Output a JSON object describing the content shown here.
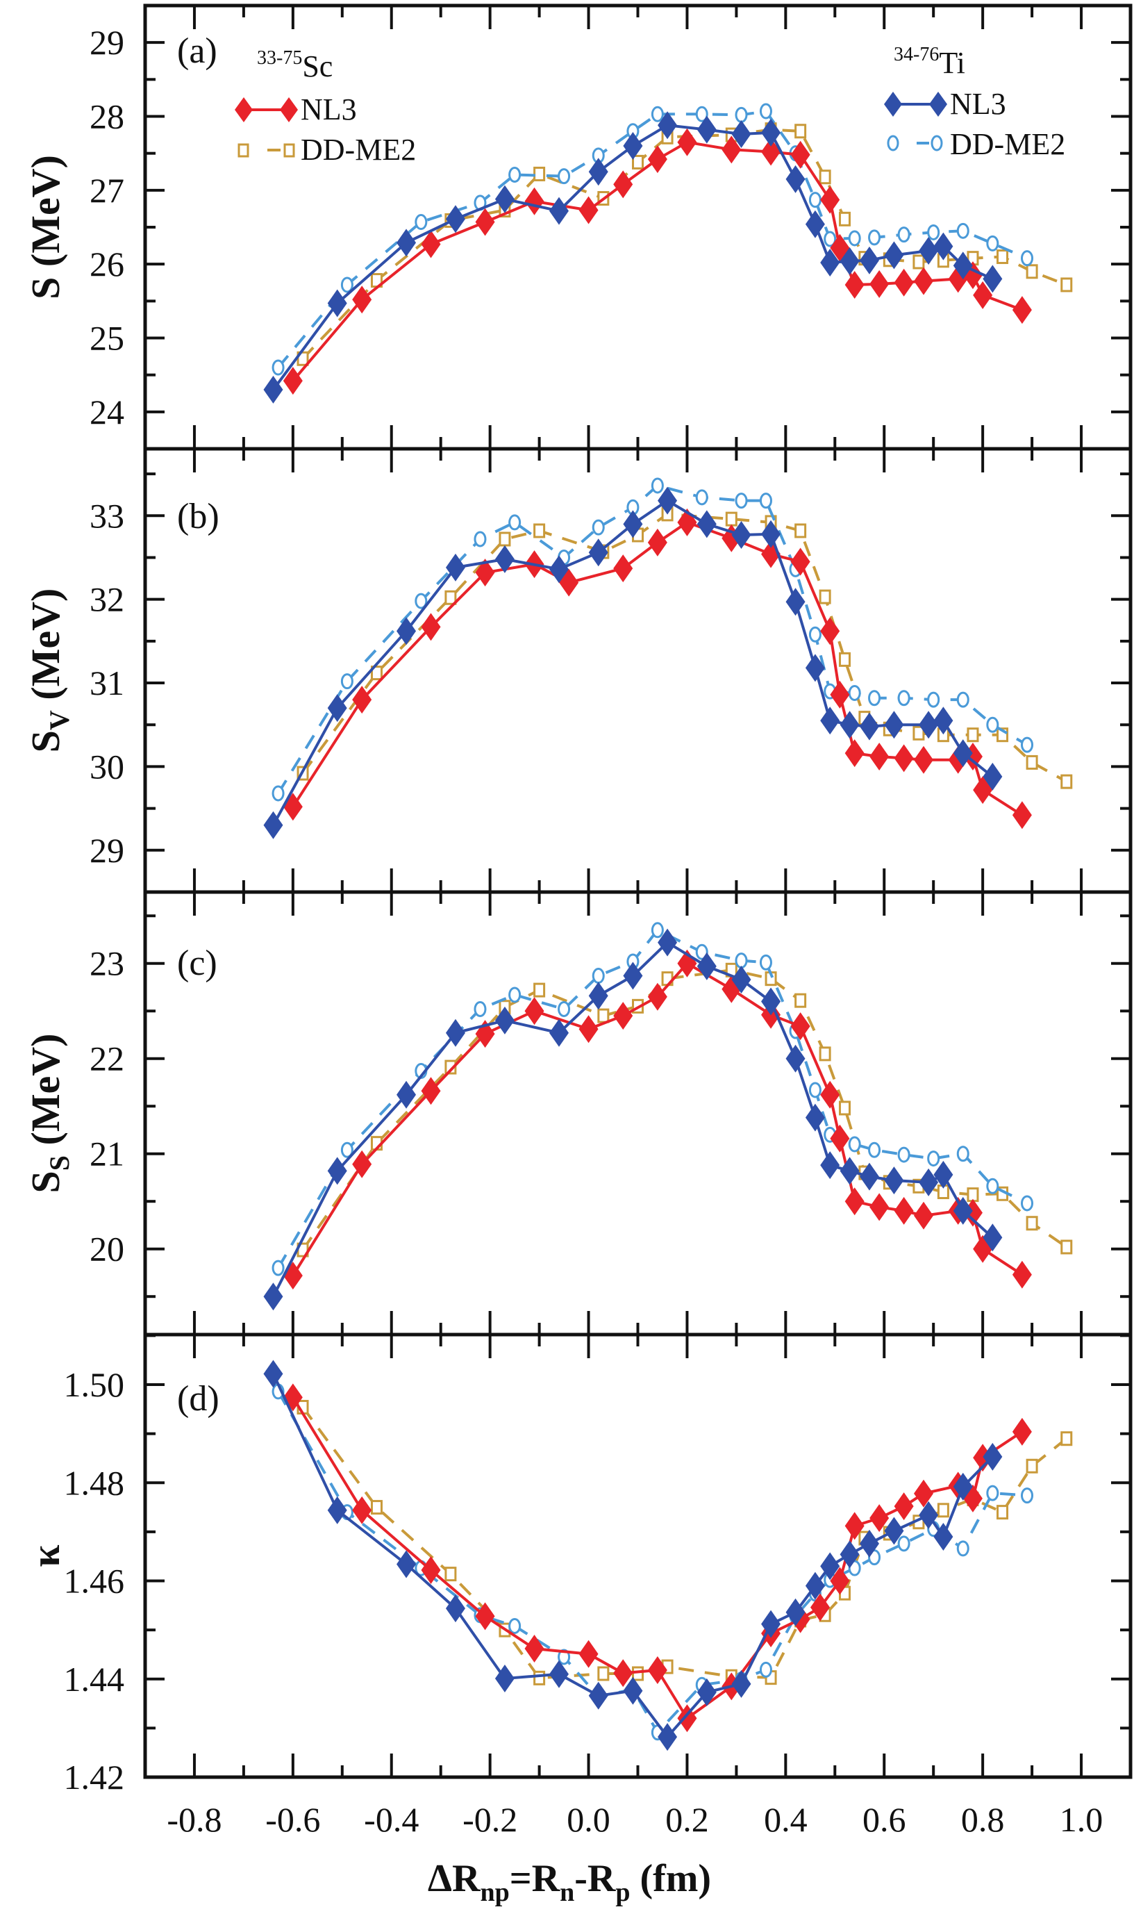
{
  "colors": {
    "sc_nl3": "#e8232a",
    "sc_ddme2": "#c99a3a",
    "ti_nl3": "#2f4fa8",
    "ti_ddme2": "#4a9ad8",
    "axis": "#111111"
  },
  "legend": {
    "sc_title_sup": "33-75",
    "sc_title": "Sc",
    "ti_title_sup": "34-76",
    "ti_title": "Ti",
    "nl3": "NL3",
    "ddme2": "DD-ME2"
  },
  "xaxis": {
    "label_delta": "ΔR",
    "label_sub1": "np",
    "label_eq": "=R",
    "label_sub2": "n",
    "label_minus": "-R",
    "label_sub3": "p",
    "label_unit": " (fm)",
    "ticks": [
      "-0.8",
      "-0.6",
      "-0.4",
      "-0.2",
      "0.0",
      "0.2",
      "0.4",
      "0.6",
      "0.8",
      "1.0"
    ]
  },
  "chart_data": [
    {
      "type": "line",
      "panel": "(a)",
      "ylabel": "S (MeV)",
      "ylabel_main": "S (MeV)",
      "xlabel": "ΔRnp=Rn-Rp (fm)",
      "xlim": [
        -0.9,
        1.1
      ],
      "ylim": [
        23.5,
        29.5
      ],
      "yticks": [
        "24",
        "25",
        "26",
        "27",
        "28",
        "29"
      ],
      "series": [
        {
          "name": "33-75Sc NL3",
          "key": "sc_nl3",
          "x": [
            -0.6,
            -0.46,
            -0.32,
            -0.21,
            -0.11,
            0.0,
            0.07,
            0.14,
            0.2,
            0.29,
            0.37,
            0.43,
            0.49,
            0.51,
            0.54,
            0.59,
            0.64,
            0.68,
            0.75,
            0.78,
            0.8,
            0.88
          ],
          "y": [
            24.42,
            25.52,
            26.27,
            26.57,
            26.85,
            26.73,
            27.08,
            27.42,
            27.65,
            27.55,
            27.52,
            27.48,
            26.87,
            26.22,
            25.72,
            25.73,
            25.75,
            25.77,
            25.8,
            25.85,
            25.58,
            25.38
          ]
        },
        {
          "name": "33-75Sc DD-ME2",
          "key": "sc_ddme2",
          "x": [
            -0.58,
            -0.43,
            -0.28,
            -0.17,
            -0.1,
            0.03,
            0.1,
            0.16,
            0.29,
            0.37,
            0.43,
            0.48,
            0.52,
            0.56,
            0.61,
            0.67,
            0.72,
            0.78,
            0.84,
            0.9,
            0.97
          ],
          "y": [
            24.72,
            25.78,
            26.59,
            26.73,
            27.22,
            26.89,
            27.38,
            27.72,
            27.75,
            27.82,
            27.8,
            27.18,
            26.61,
            26.08,
            26.06,
            26.03,
            26.05,
            26.08,
            26.1,
            25.9,
            25.72
          ]
        },
        {
          "name": "34-76Ti NL3",
          "key": "ti_nl3",
          "x": [
            -0.64,
            -0.51,
            -0.37,
            -0.27,
            -0.17,
            -0.06,
            0.02,
            0.09,
            0.16,
            0.24,
            0.31,
            0.37,
            0.42,
            0.46,
            0.49,
            0.53,
            0.57,
            0.62,
            0.69,
            0.72,
            0.76,
            0.82
          ],
          "y": [
            24.3,
            25.47,
            26.29,
            26.61,
            26.88,
            26.72,
            27.25,
            27.6,
            27.88,
            27.82,
            27.76,
            27.78,
            27.15,
            26.54,
            26.02,
            26.04,
            26.05,
            26.12,
            26.18,
            26.24,
            25.98,
            25.8
          ]
        },
        {
          "name": "34-76Ti DD-ME2",
          "key": "ti_ddme2",
          "x": [
            -0.63,
            -0.49,
            -0.34,
            -0.22,
            -0.15,
            -0.05,
            0.02,
            0.09,
            0.14,
            0.23,
            0.31,
            0.36,
            0.42,
            0.46,
            0.49,
            0.54,
            0.58,
            0.64,
            0.7,
            0.76,
            0.82,
            0.89
          ],
          "y": [
            24.6,
            25.72,
            26.57,
            26.83,
            27.21,
            27.19,
            27.47,
            27.8,
            28.03,
            28.03,
            28.02,
            28.07,
            27.5,
            26.87,
            26.34,
            26.35,
            26.36,
            26.4,
            26.43,
            26.45,
            26.28,
            26.08
          ]
        }
      ]
    },
    {
      "type": "line",
      "panel": "(b)",
      "ylabel_main": "S",
      "ylabel_sub": "V",
      "ylabel_unit": " (MeV)",
      "ylabel": "SV (MeV)",
      "xlim": [
        -0.9,
        1.1
      ],
      "ylim": [
        28.5,
        33.8
      ],
      "yticks": [
        "29",
        "30",
        "31",
        "32",
        "33"
      ],
      "series": [
        {
          "name": "33-75Sc NL3",
          "key": "sc_nl3",
          "x": [
            -0.6,
            -0.46,
            -0.32,
            -0.21,
            -0.11,
            -0.04,
            0.07,
            0.14,
            0.2,
            0.29,
            0.37,
            0.43,
            0.49,
            0.51,
            0.54,
            0.59,
            0.64,
            0.68,
            0.75,
            0.78,
            0.8,
            0.88
          ],
          "y": [
            29.52,
            30.8,
            31.67,
            32.32,
            32.42,
            32.2,
            32.37,
            32.68,
            32.92,
            32.73,
            32.54,
            32.45,
            31.62,
            30.86,
            30.16,
            30.12,
            30.1,
            30.08,
            30.08,
            30.12,
            29.72,
            29.42
          ]
        },
        {
          "name": "33-75Sc DD-ME2",
          "key": "sc_ddme2",
          "x": [
            -0.58,
            -0.43,
            -0.28,
            -0.17,
            -0.1,
            0.03,
            0.1,
            0.16,
            0.29,
            0.37,
            0.43,
            0.48,
            0.52,
            0.56,
            0.61,
            0.67,
            0.72,
            0.78,
            0.84,
            0.9,
            0.97
          ],
          "y": [
            29.92,
            31.12,
            32.02,
            32.72,
            32.82,
            32.57,
            32.77,
            33.02,
            32.96,
            32.92,
            32.82,
            32.03,
            31.28,
            30.58,
            30.45,
            30.4,
            30.38,
            30.38,
            30.38,
            30.05,
            29.82
          ]
        },
        {
          "name": "34-76Ti NL3",
          "key": "ti_nl3",
          "x": [
            -0.64,
            -0.51,
            -0.37,
            -0.27,
            -0.17,
            -0.06,
            0.02,
            0.09,
            0.16,
            0.24,
            0.31,
            0.37,
            0.42,
            0.46,
            0.49,
            0.53,
            0.57,
            0.62,
            0.69,
            0.72,
            0.76,
            0.82
          ],
          "y": [
            29.3,
            30.7,
            31.62,
            32.38,
            32.48,
            32.36,
            32.56,
            32.9,
            33.18,
            32.9,
            32.77,
            32.78,
            31.97,
            31.18,
            30.55,
            30.5,
            30.48,
            30.5,
            30.5,
            30.55,
            30.16,
            29.88
          ]
        },
        {
          "name": "34-76Ti DD-ME2",
          "key": "ti_ddme2",
          "x": [
            -0.63,
            -0.49,
            -0.34,
            -0.22,
            -0.15,
            -0.05,
            0.02,
            0.09,
            0.14,
            0.23,
            0.31,
            0.36,
            0.42,
            0.46,
            0.49,
            0.54,
            0.58,
            0.64,
            0.7,
            0.76,
            0.82,
            0.89
          ],
          "y": [
            29.68,
            31.02,
            31.98,
            32.72,
            32.92,
            32.5,
            32.86,
            33.1,
            33.36,
            33.22,
            33.18,
            33.18,
            32.36,
            31.58,
            30.9,
            30.88,
            30.82,
            30.82,
            30.8,
            30.8,
            30.5,
            30.26
          ]
        }
      ]
    },
    {
      "type": "line",
      "panel": "(c)",
      "ylabel_main": "S",
      "ylabel_sub": "S",
      "ylabel_unit": " (MeV)",
      "ylabel": "SS (MeV)",
      "xlim": [
        -0.9,
        1.1
      ],
      "ylim": [
        19.1,
        23.75
      ],
      "yticks": [
        "20",
        "21",
        "22",
        "23"
      ],
      "series": [
        {
          "name": "33-75Sc NL3",
          "key": "sc_nl3",
          "x": [
            -0.6,
            -0.46,
            -0.32,
            -0.21,
            -0.11,
            0.0,
            0.07,
            0.14,
            0.2,
            0.29,
            0.37,
            0.43,
            0.49,
            0.51,
            0.54,
            0.59,
            0.64,
            0.68,
            0.75,
            0.78,
            0.8,
            0.88
          ],
          "y": [
            19.72,
            20.89,
            21.66,
            22.26,
            22.5,
            22.31,
            22.45,
            22.65,
            23.0,
            22.73,
            22.46,
            22.34,
            21.62,
            21.16,
            20.5,
            20.44,
            20.4,
            20.35,
            20.4,
            20.38,
            20.0,
            19.73
          ]
        },
        {
          "name": "33-75Sc DD-ME2",
          "key": "sc_ddme2",
          "x": [
            -0.58,
            -0.43,
            -0.28,
            -0.17,
            -0.1,
            0.03,
            0.1,
            0.16,
            0.29,
            0.37,
            0.43,
            0.48,
            0.52,
            0.56,
            0.61,
            0.67,
            0.72,
            0.78,
            0.84,
            0.9,
            0.97
          ],
          "y": [
            19.99,
            21.11,
            21.91,
            22.54,
            22.72,
            22.45,
            22.55,
            22.84,
            22.93,
            22.84,
            22.61,
            22.05,
            21.48,
            20.8,
            20.7,
            20.66,
            20.6,
            20.57,
            20.58,
            20.27,
            20.02
          ]
        },
        {
          "name": "34-76Ti NL3",
          "key": "ti_nl3",
          "x": [
            -0.64,
            -0.51,
            -0.37,
            -0.27,
            -0.17,
            -0.06,
            0.02,
            0.09,
            0.16,
            0.24,
            0.31,
            0.37,
            0.42,
            0.46,
            0.49,
            0.53,
            0.57,
            0.62,
            0.69,
            0.72,
            0.76,
            0.82
          ],
          "y": [
            19.5,
            20.82,
            21.62,
            22.27,
            22.4,
            22.27,
            22.66,
            22.87,
            23.22,
            22.97,
            22.83,
            22.6,
            22.0,
            21.38,
            20.88,
            20.82,
            20.76,
            20.72,
            20.7,
            20.78,
            20.4,
            20.12
          ]
        },
        {
          "name": "34-76Ti DD-ME2",
          "key": "ti_ddme2",
          "x": [
            -0.63,
            -0.49,
            -0.34,
            -0.22,
            -0.15,
            -0.05,
            0.02,
            0.09,
            0.14,
            0.23,
            0.31,
            0.36,
            0.42,
            0.46,
            0.49,
            0.54,
            0.58,
            0.64,
            0.7,
            0.76,
            0.82,
            0.89
          ],
          "y": [
            19.8,
            21.04,
            21.87,
            22.52,
            22.67,
            22.52,
            22.87,
            23.02,
            23.35,
            23.12,
            23.03,
            23.01,
            22.29,
            21.67,
            21.2,
            21.1,
            21.04,
            20.99,
            20.95,
            21.0,
            20.66,
            20.48
          ]
        }
      ]
    },
    {
      "type": "line",
      "panel": "(d)",
      "ylabel_main": "κ",
      "ylabel": "κ",
      "xlim": [
        -0.9,
        1.1
      ],
      "ylim": [
        1.42,
        1.5102
      ],
      "yticks": [
        "1.42",
        "1.44",
        "1.46",
        "1.48",
        "1.50"
      ],
      "series": [
        {
          "name": "33-75Sc NL3",
          "key": "sc_nl3",
          "x": [
            -0.6,
            -0.46,
            -0.32,
            -0.21,
            -0.11,
            0.0,
            0.07,
            0.14,
            0.2,
            0.29,
            0.37,
            0.43,
            0.47,
            0.51,
            0.54,
            0.59,
            0.64,
            0.68,
            0.75,
            0.78,
            0.8,
            0.88
          ],
          "y": [
            1.4974,
            1.4744,
            1.4622,
            1.4528,
            1.4462,
            1.4451,
            1.4412,
            1.4418,
            1.432,
            1.4385,
            1.4493,
            1.4522,
            1.4546,
            1.46,
            1.4712,
            1.4728,
            1.4752,
            1.4778,
            1.4794,
            1.4768,
            1.4851,
            1.4904
          ]
        },
        {
          "name": "33-75Sc DD-ME2",
          "key": "sc_ddme2",
          "x": [
            -0.58,
            -0.43,
            -0.28,
            -0.17,
            -0.1,
            0.03,
            0.1,
            0.16,
            0.29,
            0.37,
            0.43,
            0.48,
            0.52,
            0.56,
            0.61,
            0.67,
            0.72,
            0.78,
            0.84,
            0.9,
            0.97
          ],
          "y": [
            1.4954,
            1.475,
            1.4614,
            1.45,
            1.4402,
            1.4411,
            1.4411,
            1.4425,
            1.4405,
            1.4403,
            1.452,
            1.4531,
            1.4575,
            1.4687,
            1.4697,
            1.472,
            1.4744,
            1.4767,
            1.474,
            1.4834,
            1.489
          ]
        },
        {
          "name": "34-76Ti NL3",
          "key": "ti_nl3",
          "x": [
            -0.64,
            -0.51,
            -0.37,
            -0.27,
            -0.17,
            -0.06,
            0.02,
            0.09,
            0.16,
            0.24,
            0.31,
            0.37,
            0.42,
            0.46,
            0.49,
            0.53,
            0.57,
            0.62,
            0.69,
            0.72,
            0.76,
            0.82
          ],
          "y": [
            1.5022,
            1.4744,
            1.4634,
            1.4544,
            1.4401,
            1.441,
            1.4366,
            1.4376,
            1.4282,
            1.4373,
            1.439,
            1.4512,
            1.4536,
            1.459,
            1.463,
            1.4654,
            1.4676,
            1.4702,
            1.4734,
            1.469,
            1.4792,
            1.4853
          ]
        },
        {
          "name": "34-76Ti DD-ME2",
          "key": "ti_ddme2",
          "x": [
            -0.63,
            -0.49,
            -0.34,
            -0.22,
            -0.15,
            -0.05,
            0.02,
            0.09,
            0.14,
            0.23,
            0.31,
            0.36,
            0.42,
            0.46,
            0.49,
            0.54,
            0.58,
            0.64,
            0.7,
            0.76,
            0.82,
            0.89
          ],
          "y": [
            1.4986,
            1.474,
            1.4626,
            1.453,
            1.4508,
            1.4445,
            1.4364,
            1.4379,
            1.4291,
            1.4388,
            1.4399,
            1.4419,
            1.4528,
            1.4574,
            1.4602,
            1.4626,
            1.4648,
            1.4676,
            1.4706,
            1.4666,
            1.4779,
            1.4774
          ]
        }
      ]
    }
  ]
}
